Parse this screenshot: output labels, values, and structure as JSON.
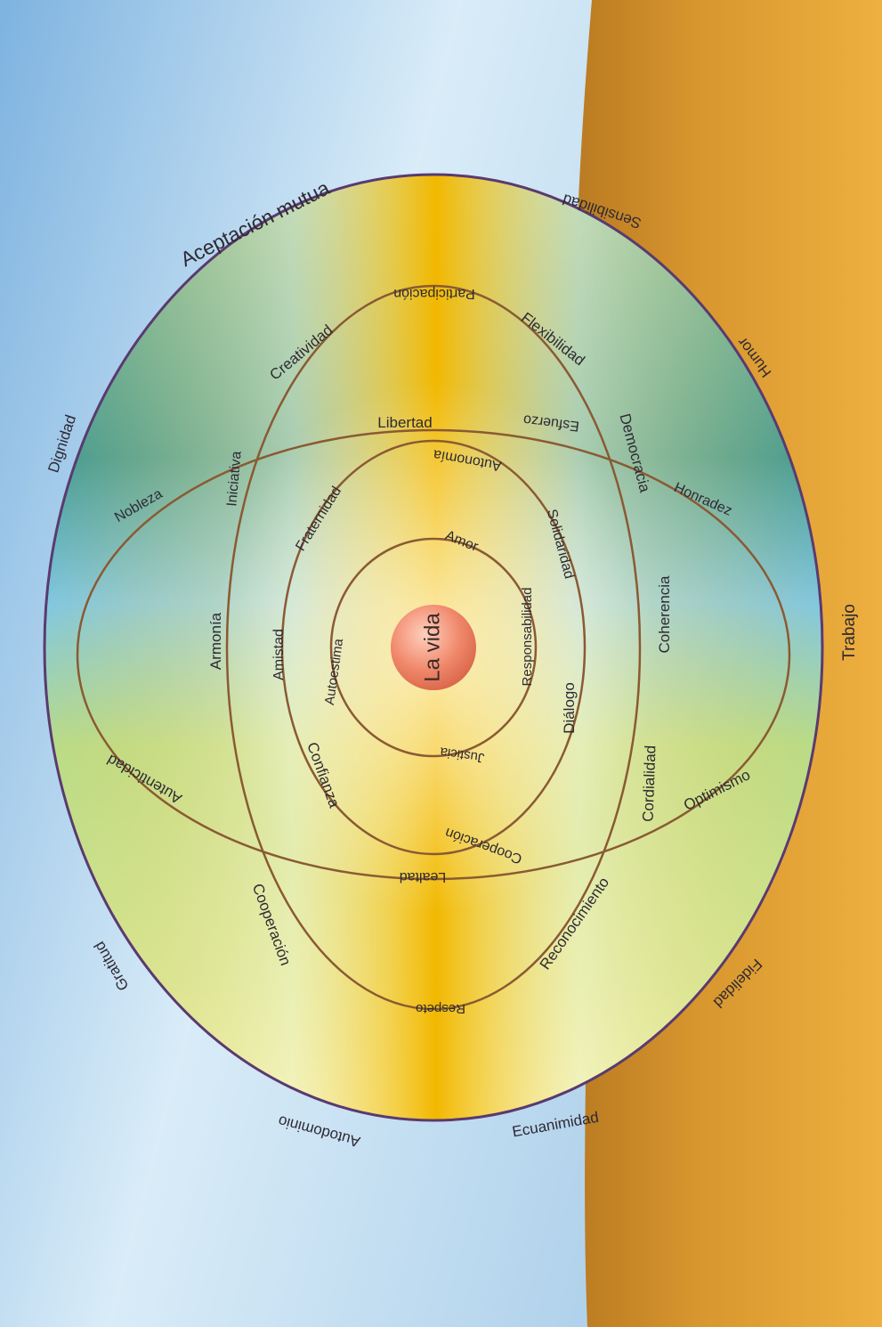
{
  "center": {
    "label": "La vida"
  },
  "labels": {
    "aceptacion": "Aceptación mutua",
    "sensibilidad": "Sensibilidad",
    "humor": "Humor",
    "trabajo": "Trabajo",
    "fidelidad": "Fidelidad",
    "ecuanimidad": "Ecuanimidad",
    "autodominio": "Autodominio",
    "gratitud": "Gratitud",
    "dignidad": "Dignidad",
    "participacion": "Participación",
    "flexibilidad": "Flexibilidad",
    "creatividad": "Creatividad",
    "democracia": "Democracia",
    "coherencia": "Coherencia",
    "cordialidad": "Cordialidad",
    "reconocimiento": "Reconocimiento",
    "respeto": "Respeto",
    "cooperacion_outer": "Cooperación",
    "armonia": "Armonía",
    "iniciativa": "Iniciativa",
    "libertad": "Libertad",
    "esfuerzo": "Esfuerzo",
    "honradez": "Honradez",
    "optimismo": "Optimismo",
    "lealtad": "Lealtad",
    "autenticidad": "Autenticidad",
    "nobleza": "Nobleza",
    "autonomia": "Autonomía",
    "fraternidad": "Fraternidad",
    "amistad": "Amistad",
    "solidaridad": "Solidaridad",
    "dialogo": "Diálogo",
    "cooperacion_inner": "Cooperación",
    "confianza": "Confianza",
    "amor": "Amor",
    "autoestima": "Autoestima",
    "responsabilidad": "Responsabilidad",
    "justicia": "Justicia"
  },
  "colors": {
    "sky": "#8fc1e6",
    "earth": "#d99a32",
    "outline": "#5a3a70",
    "ring": "#8a5a33",
    "center": "#f08a6a"
  }
}
